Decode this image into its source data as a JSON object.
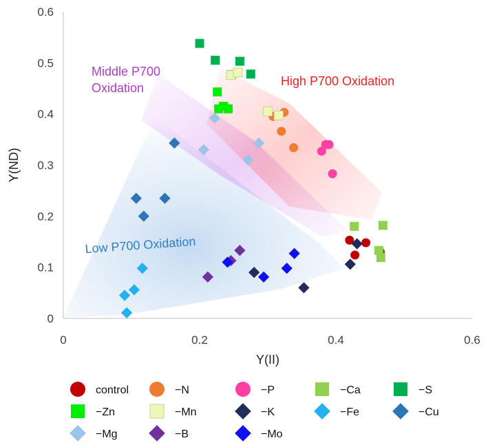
{
  "chart_data": {
    "type": "scatter",
    "title": "",
    "xlabel": "Y(II)",
    "ylabel": "Y(ND)",
    "xlim": [
      0,
      0.6
    ],
    "ylim": [
      0,
      0.6
    ],
    "x_ticks": [
      "0",
      "0.2",
      "0.4",
      "0.6"
    ],
    "y_ticks": [
      "0",
      "0.1",
      "0.2",
      "0.3",
      "0.4",
      "0.5",
      "0.6"
    ],
    "grid": false,
    "legend_position": "bottom",
    "regions": [
      {
        "label": "High P700 Oxidation",
        "color": "#ee2222"
      },
      {
        "label": "Middle P700\nOxidation",
        "color": "#b03cc8"
      },
      {
        "label": "Low P700 Oxidation",
        "color": "#2f7fc1"
      }
    ],
    "series": [
      {
        "name": "control",
        "marker": "circle",
        "color": "#c00000",
        "points": [
          [
            0.42,
            0.153
          ],
          [
            0.444,
            0.148
          ],
          [
            0.428,
            0.124
          ],
          [
            0.465,
            0.13
          ]
        ]
      },
      {
        "name": "−N",
        "marker": "circle",
        "color": "#ed7d31",
        "points": [
          [
            0.324,
            0.403
          ],
          [
            0.308,
            0.395
          ],
          [
            0.32,
            0.366
          ],
          [
            0.338,
            0.334
          ]
        ]
      },
      {
        "name": "−P",
        "marker": "circle",
        "color": "#ff3fa4",
        "points": [
          [
            0.385,
            0.34
          ],
          [
            0.39,
            0.34
          ],
          [
            0.379,
            0.327
          ],
          [
            0.395,
            0.283
          ]
        ]
      },
      {
        "name": "−Ca",
        "marker": "square",
        "color": "#92d050",
        "points": [
          [
            0.427,
            0.18
          ],
          [
            0.469,
            0.182
          ],
          [
            0.463,
            0.133
          ],
          [
            0.466,
            0.119
          ]
        ]
      },
      {
        "name": "−S",
        "marker": "square",
        "color": "#00b050",
        "points": [
          [
            0.2,
            0.538
          ],
          [
            0.223,
            0.505
          ],
          [
            0.259,
            0.503
          ],
          [
            0.275,
            0.478
          ],
          [
            0.247,
            0.477
          ]
        ]
      },
      {
        "name": "−Zn",
        "marker": "square",
        "color": "#00ee00",
        "points": [
          [
            0.226,
            0.443
          ],
          [
            0.235,
            0.415
          ],
          [
            0.242,
            0.41
          ],
          [
            0.228,
            0.41
          ]
        ]
      },
      {
        "name": "−Mn",
        "marker": "square",
        "color": "#eef6b8",
        "points": [
          [
            0.246,
            0.476
          ],
          [
            0.256,
            0.481
          ],
          [
            0.3,
            0.405
          ],
          [
            0.316,
            0.397
          ]
        ]
      },
      {
        "name": "−K",
        "marker": "diamond",
        "color": "#1f2d5a",
        "points": [
          [
            0.431,
            0.146
          ],
          [
            0.421,
            0.106
          ],
          [
            0.28,
            0.09
          ],
          [
            0.353,
            0.06
          ]
        ]
      },
      {
        "name": "−Fe",
        "marker": "diamond",
        "color": "#21b2ef",
        "points": [
          [
            0.116,
            0.098
          ],
          [
            0.104,
            0.056
          ],
          [
            0.09,
            0.045
          ],
          [
            0.093,
            0.011
          ]
        ]
      },
      {
        "name": "−Cu",
        "marker": "diamond",
        "color": "#2e75b6",
        "points": [
          [
            0.163,
            0.343
          ],
          [
            0.107,
            0.235
          ],
          [
            0.149,
            0.235
          ],
          [
            0.118,
            0.2
          ]
        ]
      },
      {
        "name": "−Mg",
        "marker": "diamond",
        "color": "#9dc3e6",
        "points": [
          [
            0.222,
            0.392
          ],
          [
            0.206,
            0.33
          ],
          [
            0.287,
            0.343
          ],
          [
            0.271,
            0.31
          ]
        ]
      },
      {
        "name": "−B",
        "marker": "diamond",
        "color": "#7030a0",
        "points": [
          [
            0.259,
            0.133
          ],
          [
            0.246,
            0.113
          ],
          [
            0.212,
            0.081
          ]
        ]
      },
      {
        "name": "−Mo",
        "marker": "diamond",
        "color": "#1010ee",
        "points": [
          [
            0.339,
            0.127
          ],
          [
            0.241,
            0.11
          ],
          [
            0.294,
            0.081
          ],
          [
            0.328,
            0.098
          ]
        ]
      }
    ]
  }
}
